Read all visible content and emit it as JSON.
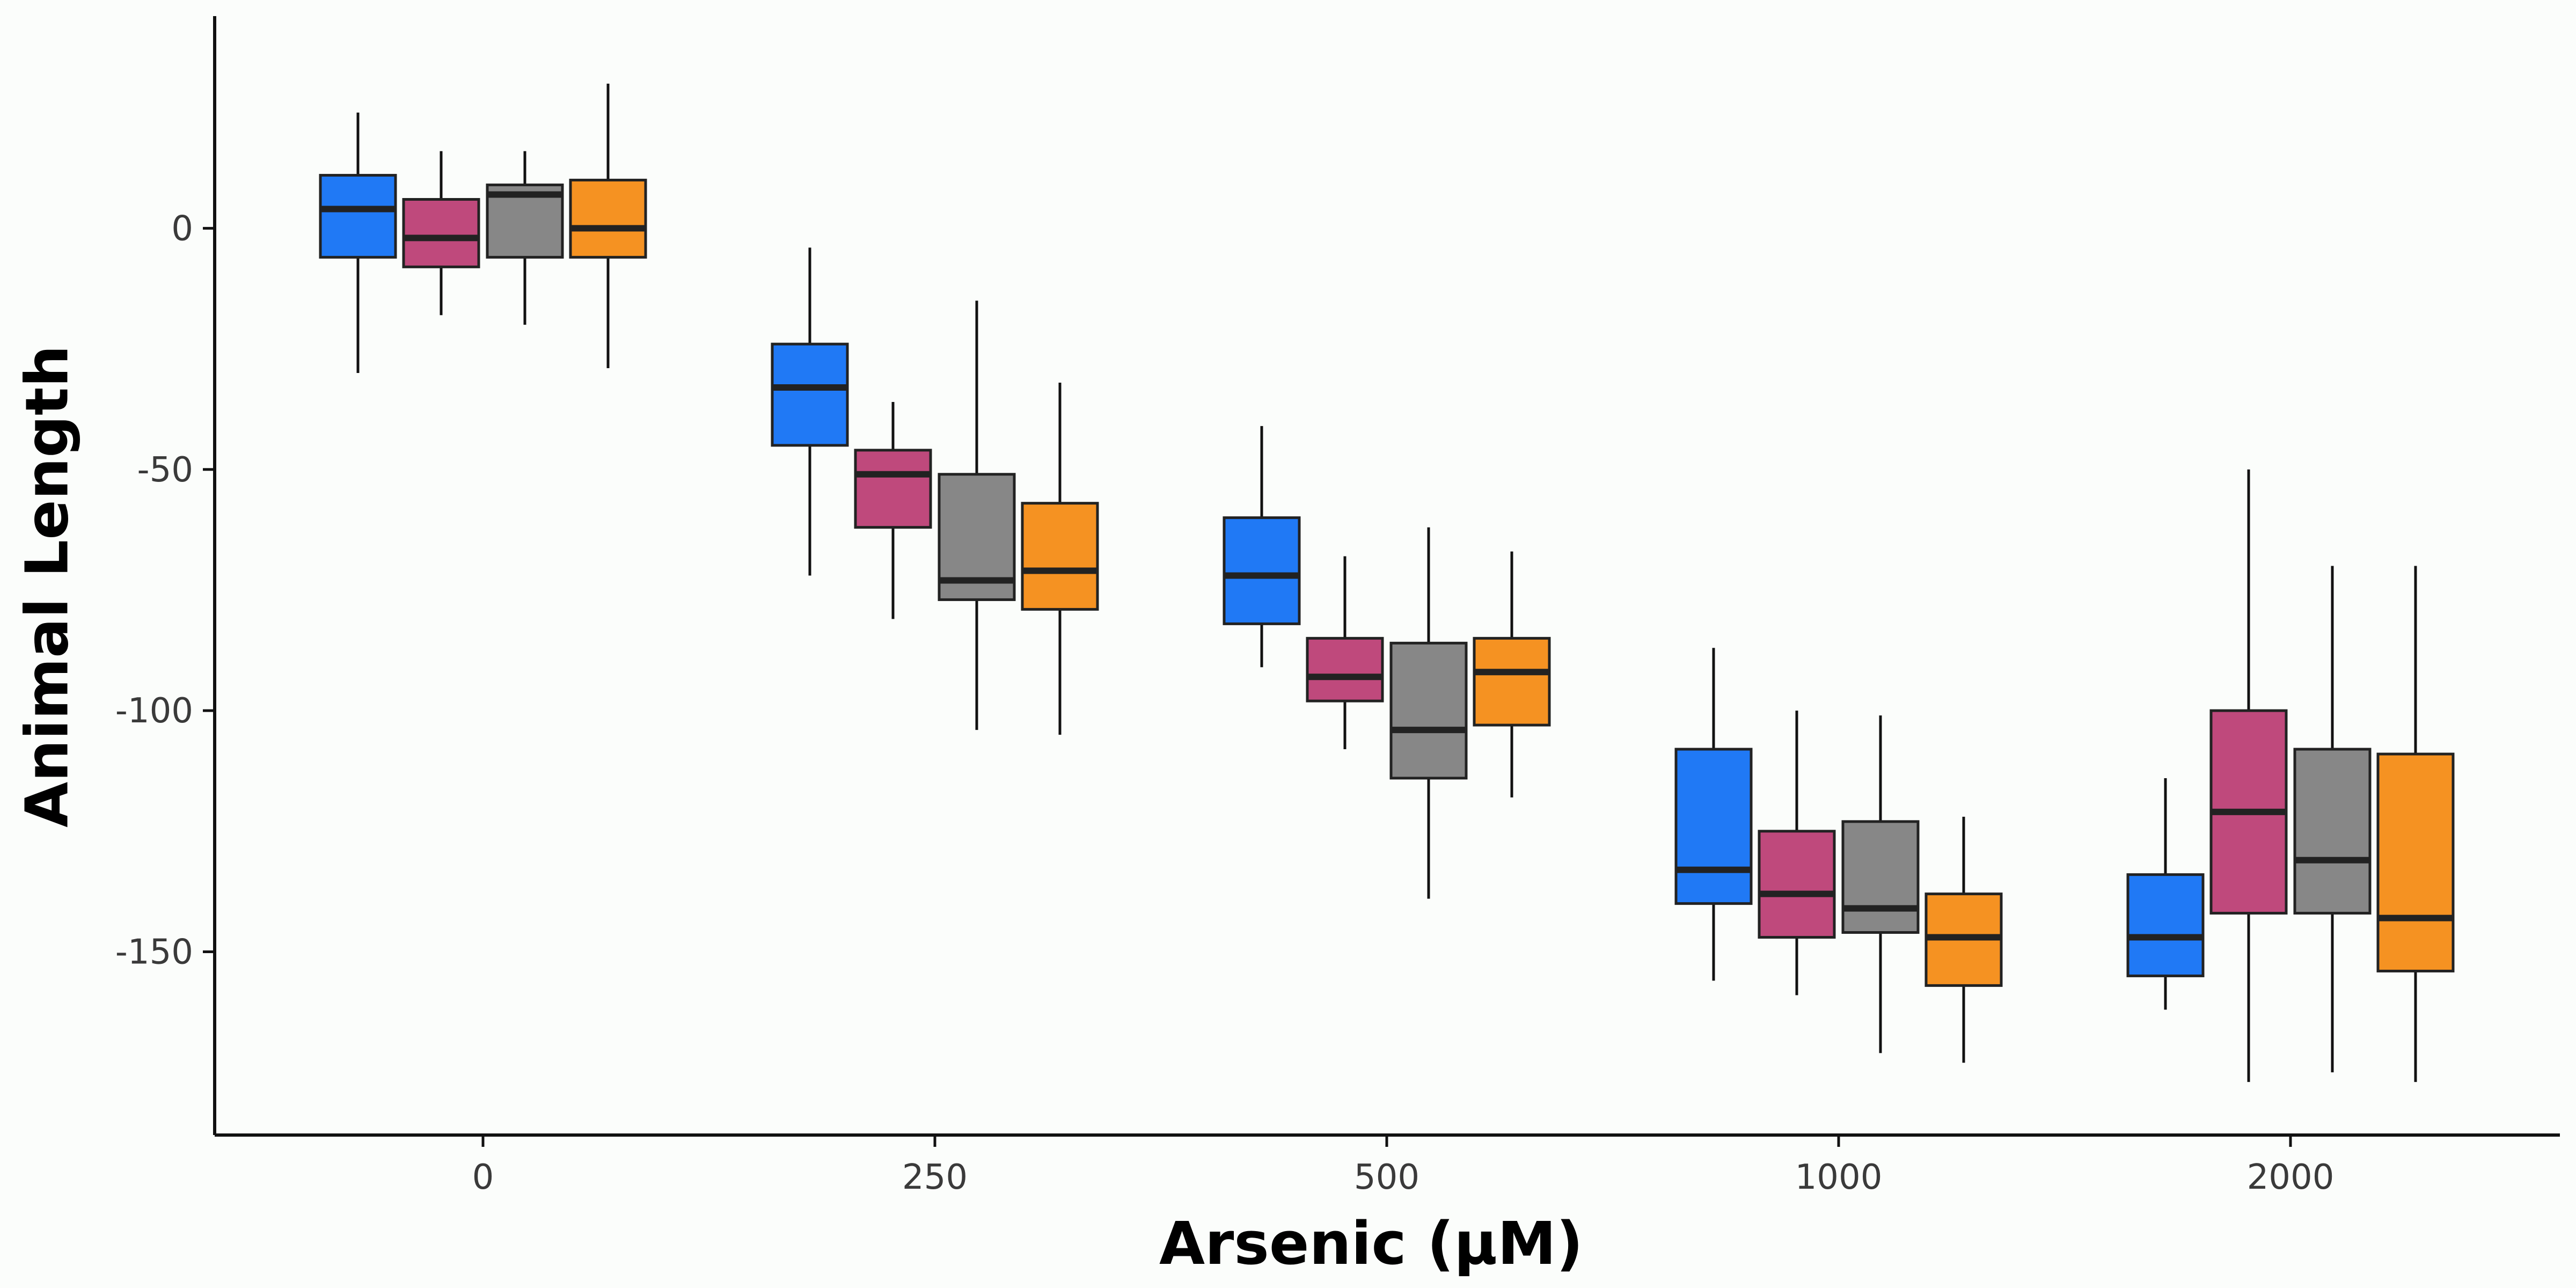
{
  "chart_data": {
    "type": "boxplot",
    "xlabel": "Arsenic (µM)",
    "ylabel": "Animal Length",
    "categories": [
      "0",
      "250",
      "500",
      "1000",
      "2000"
    ],
    "ylim": [
      -188,
      44
    ],
    "yticks": [
      0,
      -50,
      -100,
      -150
    ],
    "grid": false,
    "legend": "none",
    "series": [
      {
        "color": "#2079f5",
        "boxes": [
          {
            "min": -30,
            "q1": -6,
            "median": 4,
            "q3": 11,
            "max": 24
          },
          {
            "min": -72,
            "q1": -45,
            "median": -33,
            "q3": -24,
            "max": -4
          },
          {
            "min": -91,
            "q1": -82,
            "median": -72,
            "q3": -60,
            "max": -41
          },
          {
            "min": -156,
            "q1": -140,
            "median": -133,
            "q3": -108,
            "max": -87
          },
          {
            "min": -162,
            "q1": -155,
            "median": -147,
            "q3": -134,
            "max": -114
          }
        ]
      },
      {
        "color": "#bf497c",
        "boxes": [
          {
            "min": -18,
            "q1": -8,
            "median": -2,
            "q3": 6,
            "max": 16
          },
          {
            "min": -81,
            "q1": -62,
            "median": -51,
            "q3": -46,
            "max": -36
          },
          {
            "min": -108,
            "q1": -98,
            "median": -93,
            "q3": -85,
            "max": -68
          },
          {
            "min": -159,
            "q1": -147,
            "median": -138,
            "q3": -125,
            "max": -100
          },
          {
            "min": -177,
            "q1": -142,
            "median": -121,
            "q3": -100,
            "max": -50
          }
        ]
      },
      {
        "color": "#878787",
        "boxes": [
          {
            "min": -20,
            "q1": -6,
            "median": 7,
            "q3": 9,
            "max": 16
          },
          {
            "min": -104,
            "q1": -77,
            "median": -73,
            "q3": -51,
            "max": -15
          },
          {
            "min": -139,
            "q1": -114,
            "median": -104,
            "q3": -86,
            "max": -62
          },
          {
            "min": -171,
            "q1": -146,
            "median": -141,
            "q3": -123,
            "max": -101
          },
          {
            "min": -175,
            "q1": -142,
            "median": -131,
            "q3": -108,
            "max": -70
          }
        ]
      },
      {
        "color": "#f59222",
        "boxes": [
          {
            "min": -29,
            "q1": -6,
            "median": 0,
            "q3": 10,
            "max": 30
          },
          {
            "min": -105,
            "q1": -79,
            "median": -71,
            "q3": -57,
            "max": -32
          },
          {
            "min": -118,
            "q1": -103,
            "median": -92,
            "q3": -85,
            "max": -67
          },
          {
            "min": -173,
            "q1": -157,
            "median": -147,
            "q3": -138,
            "max": -122
          },
          {
            "min": -177,
            "q1": -154,
            "median": -143,
            "q3": -109,
            "max": -70
          }
        ]
      }
    ]
  }
}
